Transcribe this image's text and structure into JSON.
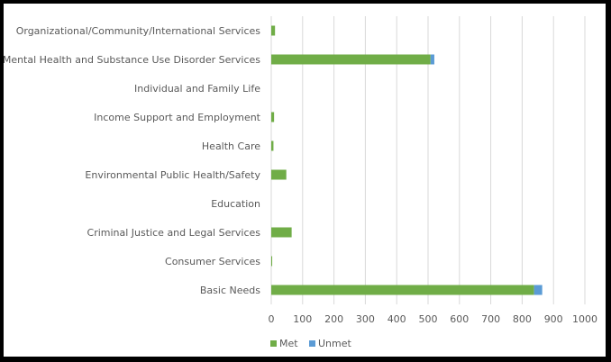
{
  "chart_data": {
    "type": "bar",
    "orientation": "horizontal",
    "stacked": true,
    "categories": [
      "Organizational/Community/International Services",
      "Mental Health and Substance Use Disorder Services",
      "Individual and Family Life",
      "Income Support and Employment",
      "Health Care",
      "Environmental Public Health/Safety",
      "Education",
      "Criminal Justice and Legal Services",
      "Consumer Services",
      "Basic Needs"
    ],
    "series": [
      {
        "name": "Met",
        "color": "#70ad47",
        "values": [
          12,
          508,
          0,
          9,
          7,
          48,
          0,
          65,
          3,
          838
        ]
      },
      {
        "name": "Unmet",
        "color": "#5b9bd5",
        "values": [
          0,
          12,
          0,
          0,
          0,
          0,
          0,
          0,
          0,
          26
        ]
      }
    ],
    "xlim": [
      0,
      1000
    ],
    "xticks": [
      "0",
      "100",
      "200",
      "300",
      "400",
      "500",
      "600",
      "700",
      "800",
      "900",
      "1000"
    ],
    "grid": "vertical",
    "legend": "bottom"
  }
}
